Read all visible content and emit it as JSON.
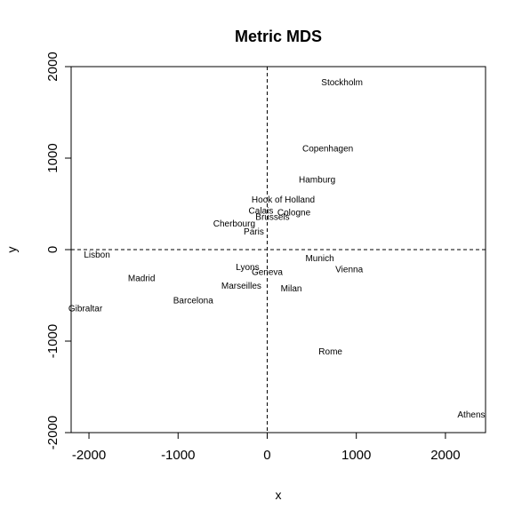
{
  "chart_data": {
    "type": "scatter",
    "title": "Metric MDS",
    "xlabel": "x",
    "ylabel": "y",
    "xlim": [
      -2200,
      2450
    ],
    "ylim": [
      -2000,
      2000
    ],
    "x_ticks": [
      -2000,
      -1000,
      0,
      1000,
      2000
    ],
    "y_ticks": [
      -2000,
      -1000,
      0,
      1000,
      2000
    ],
    "x_tick_labels": [
      "-2000",
      "-1000",
      "0",
      "1000",
      "2000"
    ],
    "y_tick_labels": [
      "-2000",
      "-1000",
      "0",
      "1000",
      "2000"
    ],
    "reference_lines": {
      "x": 0,
      "y": 0,
      "style": "dashed"
    },
    "points": [
      {
        "label": "Stockholm",
        "x": 840,
        "y": 1820
      },
      {
        "label": "Copenhagen",
        "x": 680,
        "y": 1100
      },
      {
        "label": "Hamburg",
        "x": 560,
        "y": 760
      },
      {
        "label": "Hook of Holland",
        "x": 180,
        "y": 540
      },
      {
        "label": "Calais",
        "x": -70,
        "y": 420
      },
      {
        "label": "Cologne",
        "x": 300,
        "y": 400
      },
      {
        "label": "Brussels",
        "x": 60,
        "y": 350
      },
      {
        "label": "Cherbourg",
        "x": -370,
        "y": 280
      },
      {
        "label": "Paris",
        "x": -150,
        "y": 190
      },
      {
        "label": "Lisbon",
        "x": -1910,
        "y": -60
      },
      {
        "label": "Munich",
        "x": 590,
        "y": -100
      },
      {
        "label": "Lyons",
        "x": -220,
        "y": -200
      },
      {
        "label": "Geneva",
        "x": 0,
        "y": -250
      },
      {
        "label": "Vienna",
        "x": 920,
        "y": -220
      },
      {
        "label": "Madrid",
        "x": -1410,
        "y": -320
      },
      {
        "label": "Marseilles",
        "x": -290,
        "y": -400
      },
      {
        "label": "Milan",
        "x": 270,
        "y": -430
      },
      {
        "label": "Barcelona",
        "x": -830,
        "y": -560
      },
      {
        "label": "Gibraltar",
        "x": -2040,
        "y": -650
      },
      {
        "label": "Rome",
        "x": 710,
        "y": -1120
      },
      {
        "label": "Athens",
        "x": 2290,
        "y": -1810
      }
    ]
  }
}
